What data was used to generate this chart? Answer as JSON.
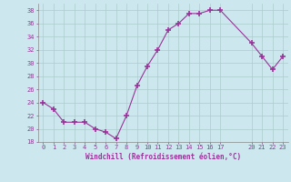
{
  "x": [
    0,
    1,
    2,
    3,
    4,
    5,
    6,
    7,
    8,
    9,
    10,
    11,
    12,
    13,
    14,
    15,
    16,
    17,
    20,
    21,
    22,
    23
  ],
  "y": [
    24,
    23,
    21,
    21,
    21,
    20,
    19.5,
    18.5,
    22,
    26.5,
    29.5,
    32,
    35,
    36,
    37.5,
    37.5,
    38,
    38,
    33,
    31,
    29,
    31
  ],
  "line_color": "#993399",
  "marker": "+",
  "marker_size": 4,
  "background_color": "#cce8ee",
  "grid_color": "#aacccc",
  "xlabel": "Windchill (Refroidissement éolien,°C)",
  "xlabel_color": "#993399",
  "tick_color": "#993399",
  "label_fontsize": 5.0,
  "xlabel_fontsize": 5.5,
  "ylim": [
    18,
    39
  ],
  "xlim": [
    -0.5,
    23.5
  ],
  "yticks": [
    18,
    20,
    22,
    24,
    26,
    28,
    30,
    32,
    34,
    36,
    38
  ],
  "xticks": [
    0,
    1,
    2,
    3,
    4,
    5,
    6,
    7,
    8,
    9,
    10,
    11,
    12,
    13,
    14,
    15,
    16,
    17,
    20,
    21,
    22,
    23
  ]
}
